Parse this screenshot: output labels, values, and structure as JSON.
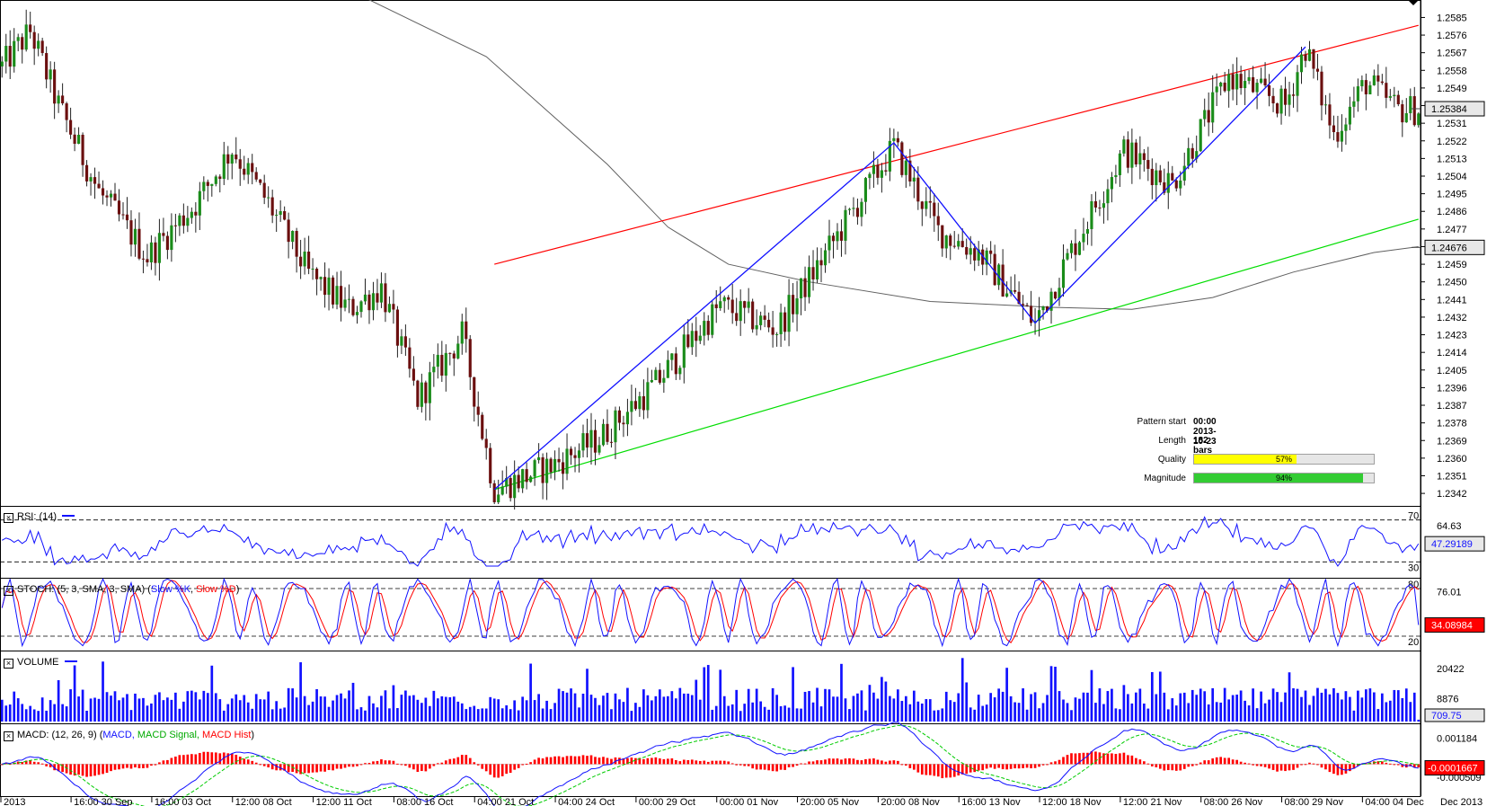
{
  "pattern_info": {
    "start_label": "Pattern start",
    "start_value": "00:00 2013-10-23",
    "length_label": "Length",
    "length_value": "182 bars",
    "quality_label": "Quality",
    "quality_value": "57%",
    "quality_pct": 57,
    "magnitude_label": "Magnitude",
    "magnitude_value": "94%",
    "magnitude_pct": 94
  },
  "panels": {
    "rsi": {
      "title": "RSI: (14)",
      "upper": "70",
      "lower": "30",
      "scale_top": "64.63",
      "current": "47.29189",
      "current_value": 47.29
    },
    "stoch": {
      "title": "STOCH: (5, 3, SMA, 3, SMA)",
      "k_label": "Slow %K",
      "d_label": "Slow %D",
      "upper": "80",
      "lower": "20",
      "scale_top": "76.01",
      "current": "34.08984",
      "current_value": 34.09
    },
    "volume": {
      "title": "VOLUME",
      "scale_top": "20422",
      "scale_mid": "8876",
      "current": "709.75"
    },
    "macd": {
      "title": "MACD: (12, 26, 9)",
      "macd_label": "MACD,",
      "signal_label": "MACD Signal,",
      "hist_label": "MACD Hist",
      "scale_top": "0.001184",
      "scale_bottom": "-0.000509",
      "current": "-0.0001667"
    }
  },
  "colors": {
    "bull": "#1a8c1a",
    "bear": "#6b0f0f",
    "resistance": "#ff0000",
    "support": "#00dd00",
    "ma": "#606060",
    "zigzag": "#1111ff",
    "rsi": "#1111ff",
    "stoch_k": "#1111ff",
    "stoch_d": "#ff0000",
    "volume": "#1111ff",
    "macd": "#1111ff",
    "signal": "#00cc00",
    "hist": "#ff0000",
    "quality": "#ffff00",
    "magnitude": "#33cc33"
  },
  "chart_data": {
    "type": "candlestick",
    "price_ticks": [
      "1.2585",
      "1.2576",
      "1.2567",
      "1.2558",
      "1.2549",
      "1.2540",
      "1.2531",
      "1.2522",
      "1.2513",
      "1.2504",
      "1.2495",
      "1.2486",
      "1.2477",
      "1.2468",
      "1.2459",
      "1.2450",
      "1.2441",
      "1.2432",
      "1.2423",
      "1.2414",
      "1.2405",
      "1.2396",
      "1.2387",
      "1.2378",
      "1.2369",
      "1.2360",
      "1.2351",
      "1.2342"
    ],
    "current_price": "1.25384",
    "current_price_value": 1.25384,
    "ma_price": "1.24676",
    "ma_price_value": 1.24676,
    "ylim": [
      1.2337,
      1.2593
    ],
    "x_labels": [
      {
        "label": "2013",
        "bar": 0
      },
      {
        "label": "16:00 30 Sep",
        "bar": 18
      },
      {
        "label": "16:00 03 Oct",
        "bar": 38
      },
      {
        "label": "12:00 08 Oct",
        "bar": 58
      },
      {
        "label": "12:00 11 Oct",
        "bar": 78
      },
      {
        "label": "08:00 16 Oct",
        "bar": 98
      },
      {
        "label": "04:00 21 Oct",
        "bar": 118
      },
      {
        "label": "04:00 24 Oct",
        "bar": 138
      },
      {
        "label": "00:00 29 Oct",
        "bar": 158
      },
      {
        "label": "00:00 01 Nov",
        "bar": 178
      },
      {
        "label": "20:00 05 Nov",
        "bar": 198
      },
      {
        "label": "20:00 08 Nov",
        "bar": 218
      },
      {
        "label": "16:00 13 Nov",
        "bar": 238
      },
      {
        "label": "12:00 18 Nov",
        "bar": 258
      },
      {
        "label": "12:00 21 Nov",
        "bar": 278
      },
      {
        "label": "08:00 26 Nov",
        "bar": 298
      },
      {
        "label": "08:00 29 Nov",
        "bar": 318
      },
      {
        "label": "04:00 04 Dec",
        "bar": 338
      }
    ],
    "x_end_label": "Dec 2013",
    "anchors": [
      [
        0,
        1.256
      ],
      [
        7,
        1.2578
      ],
      [
        14,
        1.254
      ],
      [
        24,
        1.2496
      ],
      [
        36,
        1.2463
      ],
      [
        48,
        1.249
      ],
      [
        57,
        1.2518
      ],
      [
        66,
        1.249
      ],
      [
        76,
        1.2454
      ],
      [
        86,
        1.2436
      ],
      [
        94,
        1.2447
      ],
      [
        103,
        1.239
      ],
      [
        114,
        1.2423
      ],
      [
        122,
        1.2344
      ],
      [
        136,
        1.2356
      ],
      [
        148,
        1.237
      ],
      [
        162,
        1.2398
      ],
      [
        178,
        1.2438
      ],
      [
        192,
        1.2426
      ],
      [
        209,
        1.248
      ],
      [
        221,
        1.2519
      ],
      [
        232,
        1.2476
      ],
      [
        242,
        1.2465
      ],
      [
        256,
        1.2429
      ],
      [
        266,
        1.247
      ],
      [
        278,
        1.2517
      ],
      [
        290,
        1.25
      ],
      [
        304,
        1.2555
      ],
      [
        318,
        1.254
      ],
      [
        323,
        1.257
      ],
      [
        330,
        1.2525
      ],
      [
        338,
        1.2552
      ],
      [
        346,
        1.2538
      ]
    ],
    "resistance_line": [
      [
        122,
        1.2459
      ],
      [
        351,
        1.2581
      ]
    ],
    "support_line": [
      [
        122,
        1.2344
      ],
      [
        351,
        1.2482
      ]
    ],
    "zigzag": [
      [
        122,
        1.2344
      ],
      [
        221,
        1.2521
      ],
      [
        256,
        1.2429
      ],
      [
        323,
        1.257
      ]
    ],
    "ma_line": [
      [
        80,
        1.2605
      ],
      [
        120,
        1.2565
      ],
      [
        150,
        1.251
      ],
      [
        165,
        1.2478
      ],
      [
        180,
        1.2459
      ],
      [
        200,
        1.245
      ],
      [
        230,
        1.244
      ],
      [
        260,
        1.2437
      ],
      [
        280,
        1.2436
      ],
      [
        300,
        1.2442
      ],
      [
        320,
        1.2455
      ],
      [
        340,
        1.2465
      ],
      [
        351,
        1.2468
      ]
    ]
  }
}
